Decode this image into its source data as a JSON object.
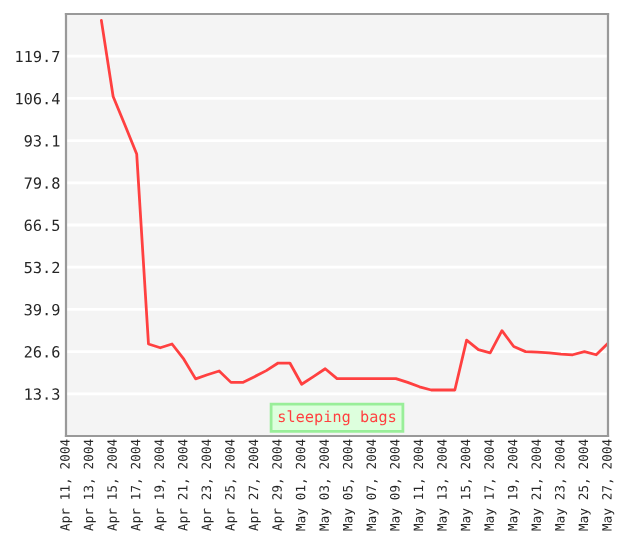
{
  "chart_data": {
    "type": "line",
    "categories": [
      "Apr 11, 2004",
      null,
      "Apr 13, 2004",
      null,
      "Apr 15, 2004",
      null,
      "Apr 17, 2004",
      null,
      "Apr 19, 2004",
      null,
      "Apr 21, 2004",
      null,
      "Apr 23, 2004",
      null,
      "Apr 25, 2004",
      null,
      "Apr 27, 2004",
      null,
      "Apr 29, 2004",
      null,
      "May 01, 2004",
      null,
      "May 03, 2004",
      null,
      "May 05, 2004",
      null,
      "May 07, 2004",
      null,
      "May 09, 2004",
      null,
      "May 11, 2004",
      null,
      "May 13, 2004",
      null,
      "May 15, 2004",
      null,
      "May 17, 2004",
      null,
      "May 19, 2004",
      null,
      "May 21, 2004",
      null,
      "May 23, 2004",
      null,
      "May 25, 2004",
      null,
      "May 27, 2004"
    ],
    "series": [
      {
        "name": "sleeping bags",
        "color": "#ff4040",
        "values": [
          null,
          null,
          null,
          131,
          107,
          98,
          88.9,
          29,
          27.8,
          29,
          24.2,
          18,
          19.3,
          20.5,
          16.9,
          16.9,
          18.7,
          20.6,
          23,
          23,
          16.3,
          18.7,
          21.2,
          18.1,
          18.1,
          18.1,
          18.1,
          18.1,
          18.1,
          16.9,
          15.5,
          14.5,
          14.5,
          14.5,
          30.2,
          27.2,
          26.2,
          33.2,
          28.2,
          26.6,
          26.4,
          26.2,
          25.8,
          25.6,
          26.6,
          25.6,
          29.2
        ]
      }
    ],
    "ylim": [
      0,
      133
    ],
    "yticks": [
      13.3,
      26.6,
      39.9,
      53.2,
      66.5,
      79.8,
      93.1,
      106.4,
      119.7
    ],
    "grid": "y",
    "legend": "bottom",
    "marker": "none",
    "line_style": "solid"
  }
}
